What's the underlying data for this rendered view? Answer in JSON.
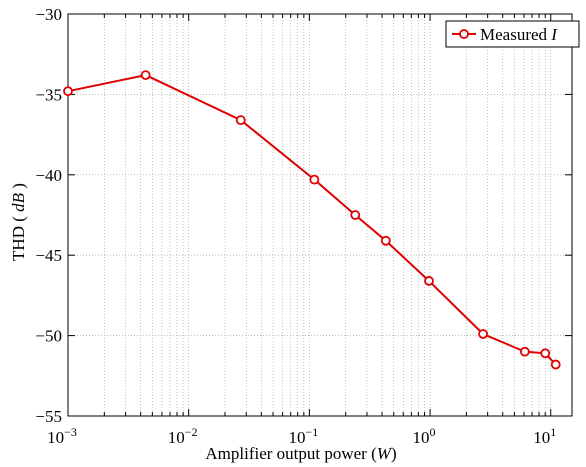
{
  "chart_data": {
    "type": "line",
    "xscale": "log",
    "xlim": [
      0.001,
      15
    ],
    "ylim": [
      -55,
      -30
    ],
    "xlabel_prefix": "Amplifier output power (",
    "xlabel_unit": "W",
    "xlabel_suffix": ")",
    "ylabel_prefix": "THD ( ",
    "ylabel_unit": "dB",
    "ylabel_suffix": " )",
    "x_ticks": [
      {
        "value": 0.001,
        "base": "10",
        "exp": "−3"
      },
      {
        "value": 0.01,
        "base": "10",
        "exp": "−2"
      },
      {
        "value": 0.1,
        "base": "10",
        "exp": "−1"
      },
      {
        "value": 1,
        "base": "10",
        "exp": "0"
      },
      {
        "value": 10,
        "base": "10",
        "exp": "1"
      }
    ],
    "y_ticks": [
      {
        "value": -30,
        "label": "−30"
      },
      {
        "value": -35,
        "label": "−35"
      },
      {
        "value": -40,
        "label": "−40"
      },
      {
        "value": -45,
        "label": "−45"
      },
      {
        "value": -50,
        "label": "−50"
      },
      {
        "value": -55,
        "label": "−55"
      }
    ],
    "grid": true,
    "legend_position": "top-right",
    "series": [
      {
        "name_prefix": "Measured ",
        "name_italic": "I",
        "color": "#e00000",
        "marker": "circle",
        "x": [
          0.001,
          0.0044,
          0.027,
          0.11,
          0.24,
          0.43,
          0.98,
          2.75,
          6.1,
          9.0,
          11.0
        ],
        "y": [
          -34.8,
          -33.8,
          -36.6,
          -40.3,
          -42.5,
          -44.1,
          -46.6,
          -49.9,
          -51.0,
          -51.1,
          -51.8
        ]
      }
    ]
  }
}
